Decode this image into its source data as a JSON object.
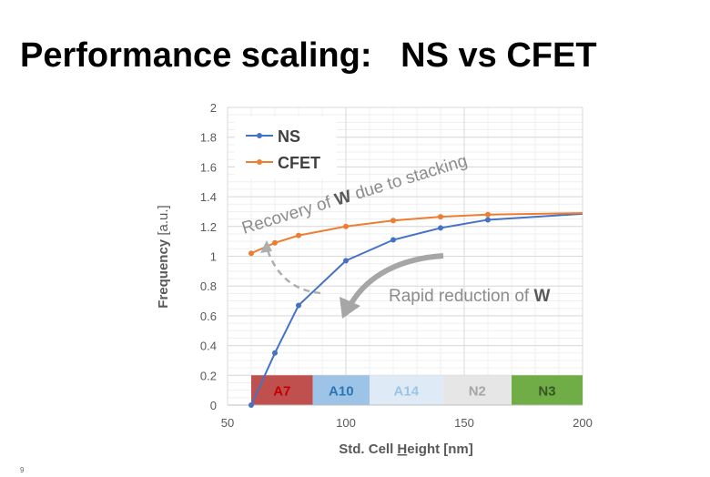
{
  "slide": {
    "title": "Performance scaling:   NS vs CFET",
    "page_number": "9"
  },
  "colors": {
    "ns": "#4472C4",
    "cfet": "#ED7D31",
    "annotation": "#8C8C8C",
    "grid_major": "#D9D9D9",
    "grid_minor": "#EFEFEF"
  },
  "chart_data": {
    "type": "line",
    "title": "",
    "xlabel": "Std. Cell Height [nm]",
    "xlabel_parts": [
      "Std. Cell ",
      "H",
      "eight [nm]"
    ],
    "ylabel": "Frequency [a.u.]",
    "ylabel_parts": [
      "Frequency",
      " [a.u.]"
    ],
    "xlim": [
      50,
      200
    ],
    "ylim": [
      0,
      2
    ],
    "xticks": [
      50,
      100,
      150,
      200
    ],
    "xtick_labels": [
      "50",
      "100",
      "150",
      "200"
    ],
    "yticks": [
      0,
      0.2,
      0.4,
      0.6,
      0.8,
      1,
      1.2,
      1.4,
      1.6,
      1.8,
      2
    ],
    "ytick_labels": [
      "0",
      "0.2",
      "0.4",
      "0.6",
      "0.8",
      "1",
      "1.2",
      "1.4",
      "1.6",
      "1.8",
      "2"
    ],
    "grid": true,
    "legend_position": "top-left",
    "series": [
      {
        "name": "NS",
        "color": "#4472C4",
        "x": [
          60,
          70,
          80,
          100,
          120,
          140,
          160,
          200
        ],
        "y": [
          0,
          0.35,
          0.67,
          0.97,
          1.11,
          1.19,
          1.245,
          1.285
        ]
      },
      {
        "name": "CFET",
        "color": "#ED7D31",
        "x": [
          60,
          70,
          80,
          100,
          120,
          140,
          160,
          200
        ],
        "y": [
          1.02,
          1.09,
          1.14,
          1.2,
          1.24,
          1.265,
          1.28,
          1.29
        ]
      }
    ],
    "nodes": [
      {
        "label": "A7",
        "x0": 60,
        "x1": 86,
        "fill": "#C0504D",
        "text_color": "#C00000"
      },
      {
        "label": "A10",
        "x0": 86,
        "x1": 110,
        "fill": "#9DC3E6",
        "text_color": "#2E75B6"
      },
      {
        "label": "A14",
        "x0": 110,
        "x1": 141,
        "fill": "#DEEBF7",
        "text_color": "#9DC3E6"
      },
      {
        "label": "N2",
        "x0": 141,
        "x1": 170,
        "fill": "#E7E6E6",
        "text_color": "#A6A6A6"
      },
      {
        "label": "N3",
        "x0": 170,
        "x1": 200,
        "fill": "#70AD47",
        "text_color": "#375623"
      }
    ],
    "node_band_ylim": [
      0,
      0.2
    ],
    "annotations": [
      {
        "text_parts": [
          "Recovery of ",
          "W",
          " due to stacking"
        ]
      },
      {
        "text_parts": [
          "Rapid reduction of ",
          "W"
        ]
      }
    ]
  }
}
